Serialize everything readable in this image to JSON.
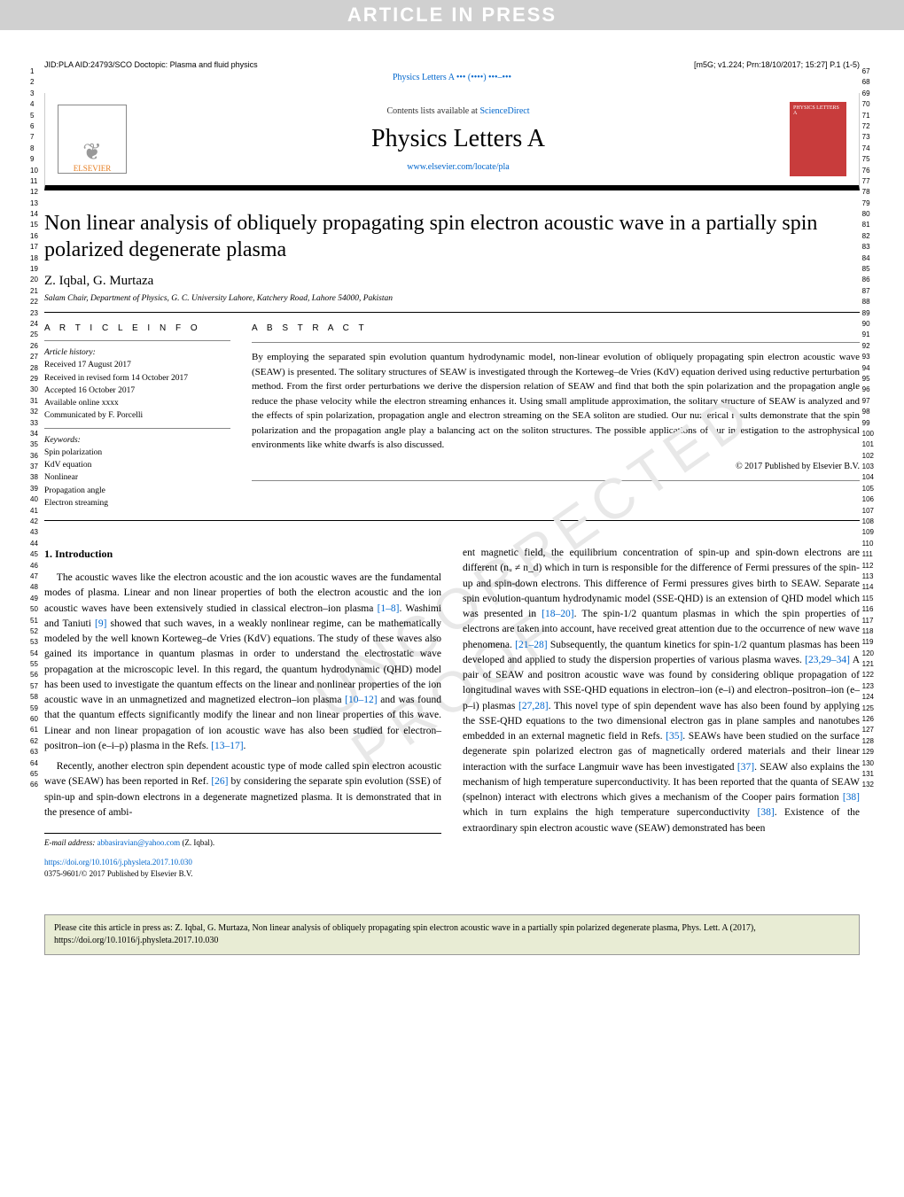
{
  "watermark_banner": "ARTICLE IN PRESS",
  "watermark_diag": "UNCORRECTED PROOF",
  "top_meta_left": "JID:PLA  AID:24793/SCO   Doctopic: Plasma and fluid physics",
  "top_meta_right": "[m5G; v1.224; Prn:18/10/2017; 15:27] P.1 (1-5)",
  "journal_line_text": "Physics Letters A ••• (••••) •••–•••",
  "masthead": {
    "logo_text": "ELSEVIER",
    "contents_prefix": "Contents lists available at ",
    "contents_link": "ScienceDirect",
    "journal_title": "Physics Letters A",
    "url": "www.elsevier.com/locate/pla",
    "cover_text": "PHYSICS LETTERS A"
  },
  "article": {
    "title": "Non linear analysis of obliquely propagating spin electron acoustic wave in a partially spin polarized degenerate plasma",
    "authors": "Z. Iqbal, G. Murtaza",
    "affiliation": "Salam Chair, Department of Physics, G. C. University Lahore, Katchery Road, Lahore 54000, Pakistan"
  },
  "info": {
    "heading": "A R T I C L E   I N F O",
    "history_label": "Article history:",
    "received": "Received 17 August 2017",
    "revised": "Received in revised form 14 October 2017",
    "accepted": "Accepted 16 October 2017",
    "online": "Available online xxxx",
    "communicated": "Communicated by F. Porcelli",
    "keywords_label": "Keywords:",
    "keywords": [
      "Spin polarization",
      "KdV equation",
      "Nonlinear",
      "Propagation angle",
      "Electron streaming"
    ]
  },
  "abstract": {
    "heading": "A B S T R A C T",
    "text": "By employing the separated spin evolution quantum hydrodynamic model, non-linear evolution of obliquely propagating spin electron acoustic wave (SEAW) is presented. The solitary structures of SEAW is investigated through the Korteweg–de Vries (KdV) equation derived using reductive perturbation method. From the first order perturbations we derive the dispersion relation of SEAW and find that both the spin polarization and the propagation angle reduce the phase velocity while the electron streaming enhances it. Using small amplitude approximation, the solitary structure of SEAW is analyzed and the effects of spin polarization, propagation angle and electron streaming on the SEA soliton are studied. Our numerical results demonstrate that the spin polarization and the propagation angle play a balancing act on the soliton structures. The possible applications of our investigation to the astrophysical environments like white dwarfs is also discussed.",
    "copyright": "© 2017 Published by Elsevier B.V."
  },
  "section_heading": "1. Introduction",
  "col1_p1": "The acoustic waves like the electron acoustic and the ion acoustic waves are the fundamental modes of plasma. Linear and non linear properties of both the electron acoustic and the ion acoustic waves have been extensively studied in classical electron–ion plasma [1–8]. Washimi and Taniuti [9] showed that such waves, in a weakly nonlinear regime, can be mathematically modeled by the well known Korteweg–de Vries (KdV) equations. The study of these waves also gained its importance in quantum plasmas in order to understand the electrostatic wave propagation at the microscopic level. In this regard, the quantum hydrodynamic (QHD) model has been used to investigate the quantum effects on the linear and nonlinear properties of the ion acoustic wave in an unmagnetized and magnetized electron–ion plasma [10–12] and was found that the quantum effects significantly modify the linear and non linear properties of this wave. Linear and non linear propagation of ion acoustic wave has also been studied for electron–positron–ion (e–i–p) plasma in the Refs. [13–17].",
  "col1_p2": "Recently, another electron spin dependent acoustic type of mode called spin electron acoustic wave (SEAW) has been reported in Ref. [26] by considering the separate spin evolution (SSE) of spin-up and spin-down electrons in a degenerate magnetized plasma. It is demonstrated that in the presence of ambi-",
  "col2_p1": "ent magnetic field, the equilibrium concentration of spin-up and spin-down electrons are different (nᵤ ≠ n_d) which in turn is responsible for the difference of Fermi pressures of the spin-up and spin-down electrons. This difference of Fermi pressures gives birth to SEAW. Separate spin evolution-quantum hydrodynamic model (SSE-QHD) is an extension of QHD model which was presented in [18–20]. The spin-1/2 quantum plasmas in which the spin properties of electrons are taken into account, have received great attention due to the occurrence of new wave phenomena. [21–28] Subsequently, the quantum kinetics for spin-1/2 quantum plasmas has been developed and applied to study the dispersion properties of various plasma waves. [23,29–34] A pair of SEAW and positron acoustic wave was found by considering oblique propagation of longitudinal waves with SSE-QHD equations in electron–ion (e–i) and electron–positron–ion (e–p–i) plasmas [27,28]. This novel type of spin dependent wave has also been found by applying the SSE-QHD equations to the two dimensional electron gas in plane samples and nanotubes embedded in an external magnetic field in Refs. [35]. SEAWs have been studied on the surface degenerate spin polarized electron gas of magnetically ordered materials and their linear interaction with the surface Langmuir wave has been investigated [37]. SEAW also explains the mechanism of high temperature superconductivity. It has been reported that the quanta of SEAW (spelnon) interact with electrons which gives a mechanism of the Cooper pairs formation [38] which in turn explains the high temperature superconductivity [38]. Existence of the extraordinary spin electron acoustic wave (SEAW) demonstrated has been",
  "footnotes": {
    "email_label": "E-mail address:",
    "email": "abbasiravian@yahoo.com",
    "email_name": "(Z. Iqbal).",
    "doi": "https://doi.org/10.1016/j.physleta.2017.10.030",
    "issn": "0375-9601/© 2017 Published by Elsevier B.V."
  },
  "cite_box": "Please cite this article in press as: Z. Iqbal, G. Murtaza, Non linear analysis of obliquely propagating spin electron acoustic wave in a partially spin polarized degenerate plasma, Phys. Lett. A (2017), https://doi.org/10.1016/j.physleta.2017.10.030",
  "line_numbers": {
    "left_start": 1,
    "left_end": 66,
    "right_start": 67,
    "right_end": 132
  },
  "colors": {
    "link": "#0066cc",
    "logo": "#e67e22",
    "cover": "#c83c3c",
    "citebox_bg": "#e8ecd4",
    "watermark_bg": "#d0d0d0"
  }
}
